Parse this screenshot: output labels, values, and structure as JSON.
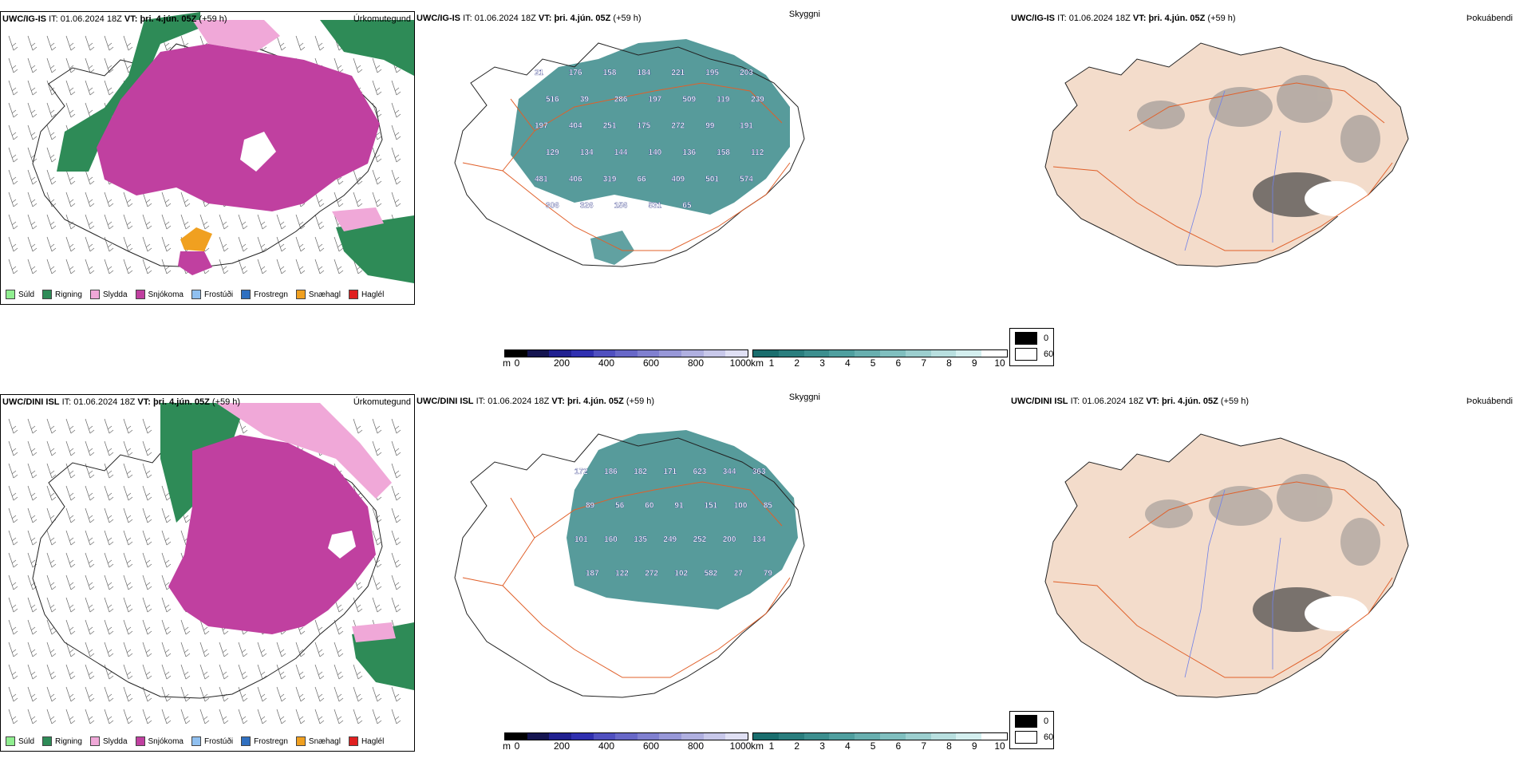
{
  "rows": [
    {
      "model": "UWC/IG-IS",
      "it_label": "IT:",
      "it_value": "01.06.2024 18Z",
      "vt_label": "VT:",
      "vt_value": "þri. 4.jún. 05Z",
      "lead": "(+59 h)",
      "panel_titles": [
        "Úrkomutegund",
        "Skyggni",
        "Þokuábendi"
      ],
      "visibility_labels": [
        "21",
        "176",
        "158",
        "184",
        "221",
        "195",
        "203",
        "516",
        "39",
        "286",
        "197",
        "509",
        "119",
        "239",
        "197",
        "404",
        "251",
        "175",
        "272",
        "99",
        "191",
        "129",
        "134",
        "144",
        "140",
        "136",
        "158",
        "112",
        "481",
        "406",
        "319",
        "66",
        "409",
        "501",
        "574",
        "306",
        "326",
        "156",
        "531",
        "65"
      ]
    },
    {
      "model": "UWC/DINI ISL",
      "it_label": "IT:",
      "it_value": "01.06.2024 18Z",
      "vt_label": "VT:",
      "vt_value": "þri. 4.jún. 05Z",
      "lead": "(+59 h)",
      "panel_titles": [
        "Úrkomutegund",
        "Skyggni",
        "Þokuábendi"
      ],
      "visibility_labels": [
        "172",
        "186",
        "182",
        "171",
        "623",
        "344",
        "363",
        "89",
        "56",
        "60",
        "91",
        "151",
        "100",
        "85",
        "101",
        "160",
        "135",
        "249",
        "252",
        "200",
        "134",
        "187",
        "122",
        "272",
        "102",
        "582",
        "27",
        "79"
      ]
    }
  ],
  "precip_legend": [
    {
      "label": "Súld",
      "color": "#90ee90"
    },
    {
      "label": "Rigning",
      "color": "#2e8b57"
    },
    {
      "label": "Slydda",
      "color": "#f0a8d8"
    },
    {
      "label": "Snjókoma",
      "color": "#c040a0"
    },
    {
      "label": "Frostúði",
      "color": "#90c0f0"
    },
    {
      "label": "Frostregn",
      "color": "#3070c0"
    },
    {
      "label": "Snæhagl",
      "color": "#f0a020"
    },
    {
      "label": "Haglél",
      "color": "#e02020"
    }
  ],
  "cloud_base_bar": {
    "unit": "m",
    "ticks": [
      "0",
      "200",
      "400",
      "600",
      "800",
      "1000"
    ],
    "colors": [
      "#000000",
      "#141450",
      "#202090",
      "#3030b0",
      "#5050c0",
      "#6868c8",
      "#8080d0",
      "#9898d8",
      "#b0b0e0",
      "#c8c8ea",
      "#e0e0f4"
    ]
  },
  "visibility_bar": {
    "unit": "km",
    "ticks": [
      "1",
      "2",
      "3",
      "4",
      "5",
      "6",
      "7",
      "8",
      "9",
      "10"
    ],
    "colors": [
      "#1a6e6e",
      "#2a7e7e",
      "#3d8f8f",
      "#4f9f9f",
      "#68afaf",
      "#80bfbf",
      "#9ccfcf",
      "#b8dfdf",
      "#d4efef",
      "#ffffff"
    ]
  },
  "fog_legend": {
    "values": [
      "0",
      "60"
    ],
    "colors": [
      "#000000",
      "#ffffff"
    ]
  },
  "colors": {
    "rain": "#2e8b57",
    "snow": "#c040a0",
    "sleet": "#f0a8d8",
    "hail": "#f0a020",
    "vis_fill": "#3a8a8a",
    "land_fog": "#f3dccb",
    "roads": "#e0602a",
    "rivers": "#7080e8"
  }
}
